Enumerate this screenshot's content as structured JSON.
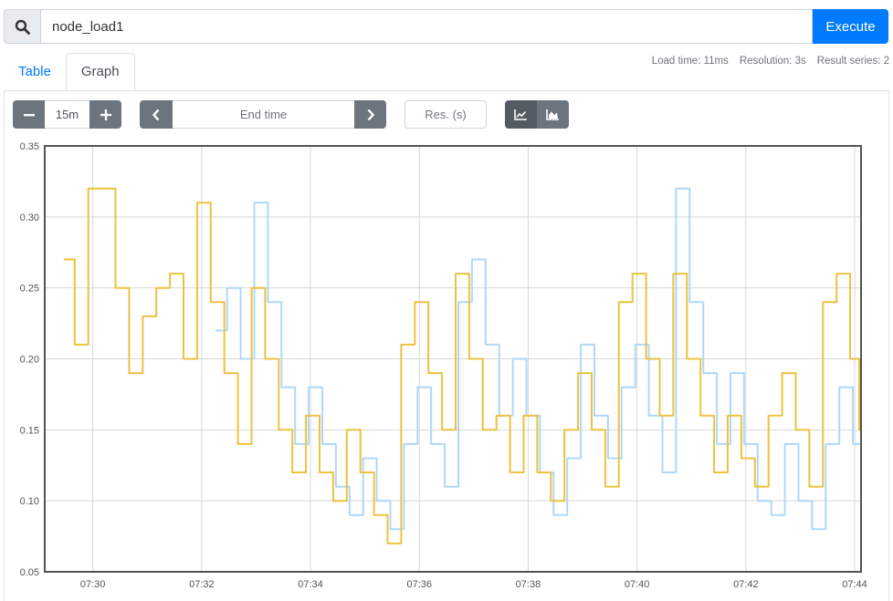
{
  "query": {
    "expression": "node_load1",
    "execute_label": "Execute",
    "search_icon": "search-icon"
  },
  "tabs": [
    {
      "label": "Table",
      "active": false
    },
    {
      "label": "Graph",
      "active": true
    }
  ],
  "stats": {
    "load_time": "Load time: 11ms",
    "resolution": "Resolution: 3s",
    "result_series": "Result series: 2"
  },
  "controls": {
    "range_value": "15m",
    "end_time_placeholder": "End time",
    "resolution_placeholder": "Res. (s)",
    "minus_icon": "minus-icon",
    "plus_icon": "plus-icon",
    "prev_icon": "chevron-left-icon",
    "next_icon": "chevron-right-icon",
    "lines_icon": "line-chart-icon",
    "stacked_icon": "area-chart-icon"
  },
  "colors": {
    "accent": "#007bff",
    "series_1": "#edc240",
    "series_2": "#afd8f8"
  },
  "chart_data": {
    "type": "line",
    "title": "",
    "xlabel": "",
    "ylabel": "",
    "ylim": [
      0.05,
      0.35
    ],
    "xlim": [
      "07:29:07",
      "07:44:07"
    ],
    "y_ticks": [
      "0.35",
      "0.30",
      "0.25",
      "0.20",
      "0.15",
      "0.10",
      "0.05"
    ],
    "x_ticks": [
      "07:30",
      "07:32",
      "07:34",
      "07:36",
      "07:38",
      "07:40",
      "07:42",
      "07:44"
    ],
    "grid": true,
    "step": true,
    "series": [
      {
        "points": [
          [
            "07:29:28",
            0.27
          ],
          [
            "07:29:40",
            0.21
          ],
          [
            "07:29:55",
            0.32
          ],
          [
            "07:30:25",
            0.25
          ],
          [
            "07:30:40",
            0.19
          ],
          [
            "07:30:55",
            0.23
          ],
          [
            "07:31:10",
            0.25
          ],
          [
            "07:31:25",
            0.26
          ],
          [
            "07:31:40",
            0.2
          ],
          [
            "07:31:55",
            0.31
          ],
          [
            "07:32:10",
            0.24
          ],
          [
            "07:32:25",
            0.19
          ],
          [
            "07:32:40",
            0.14
          ],
          [
            "07:32:55",
            0.25
          ],
          [
            "07:33:10",
            0.2
          ],
          [
            "07:33:25",
            0.15
          ],
          [
            "07:33:40",
            0.12
          ],
          [
            "07:33:55",
            0.16
          ],
          [
            "07:34:10",
            0.12
          ],
          [
            "07:34:25",
            0.1
          ],
          [
            "07:34:40",
            0.15
          ],
          [
            "07:34:55",
            0.12
          ],
          [
            "07:35:10",
            0.09
          ],
          [
            "07:35:25",
            0.07
          ],
          [
            "07:35:40",
            0.21
          ],
          [
            "07:35:55",
            0.24
          ],
          [
            "07:36:10",
            0.19
          ],
          [
            "07:36:25",
            0.15
          ],
          [
            "07:36:40",
            0.26
          ],
          [
            "07:36:55",
            0.2
          ],
          [
            "07:37:10",
            0.15
          ],
          [
            "07:37:25",
            0.16
          ],
          [
            "07:37:40",
            0.12
          ],
          [
            "07:37:55",
            0.16
          ],
          [
            "07:38:10",
            0.12
          ],
          [
            "07:38:25",
            0.1
          ],
          [
            "07:38:40",
            0.15
          ],
          [
            "07:38:55",
            0.19
          ],
          [
            "07:39:10",
            0.15
          ],
          [
            "07:39:25",
            0.11
          ],
          [
            "07:39:40",
            0.24
          ],
          [
            "07:39:55",
            0.26
          ],
          [
            "07:40:10",
            0.2
          ],
          [
            "07:40:25",
            0.16
          ],
          [
            "07:40:40",
            0.26
          ],
          [
            "07:40:55",
            0.2
          ],
          [
            "07:41:10",
            0.16
          ],
          [
            "07:41:25",
            0.12
          ],
          [
            "07:41:40",
            0.16
          ],
          [
            "07:41:55",
            0.13
          ],
          [
            "07:42:10",
            0.11
          ],
          [
            "07:42:25",
            0.16
          ],
          [
            "07:42:40",
            0.19
          ],
          [
            "07:42:55",
            0.15
          ],
          [
            "07:43:10",
            0.11
          ],
          [
            "07:43:25",
            0.24
          ],
          [
            "07:43:40",
            0.26
          ],
          [
            "07:43:55",
            0.2
          ],
          [
            "07:44:05",
            0.15
          ]
        ]
      },
      {
        "points": [
          [
            "07:32:15",
            0.22
          ],
          [
            "07:32:28",
            0.25
          ],
          [
            "07:32:43",
            0.2
          ],
          [
            "07:32:58",
            0.31
          ],
          [
            "07:33:13",
            0.24
          ],
          [
            "07:33:28",
            0.18
          ],
          [
            "07:33:43",
            0.14
          ],
          [
            "07:33:58",
            0.18
          ],
          [
            "07:34:13",
            0.14
          ],
          [
            "07:34:28",
            0.11
          ],
          [
            "07:34:43",
            0.09
          ],
          [
            "07:34:58",
            0.13
          ],
          [
            "07:35:13",
            0.1
          ],
          [
            "07:35:28",
            0.08
          ],
          [
            "07:35:43",
            0.14
          ],
          [
            "07:35:58",
            0.18
          ],
          [
            "07:36:13",
            0.14
          ],
          [
            "07:36:28",
            0.11
          ],
          [
            "07:36:43",
            0.24
          ],
          [
            "07:36:58",
            0.27
          ],
          [
            "07:37:13",
            0.21
          ],
          [
            "07:37:28",
            0.16
          ],
          [
            "07:37:43",
            0.2
          ],
          [
            "07:37:58",
            0.16
          ],
          [
            "07:38:13",
            0.12
          ],
          [
            "07:38:28",
            0.09
          ],
          [
            "07:38:43",
            0.13
          ],
          [
            "07:38:58",
            0.21
          ],
          [
            "07:39:13",
            0.16
          ],
          [
            "07:39:28",
            0.13
          ],
          [
            "07:39:43",
            0.18
          ],
          [
            "07:39:58",
            0.21
          ],
          [
            "07:40:13",
            0.16
          ],
          [
            "07:40:28",
            0.12
          ],
          [
            "07:40:43",
            0.32
          ],
          [
            "07:40:58",
            0.24
          ],
          [
            "07:41:13",
            0.19
          ],
          [
            "07:41:28",
            0.14
          ],
          [
            "07:41:43",
            0.19
          ],
          [
            "07:41:58",
            0.14
          ],
          [
            "07:42:13",
            0.1
          ],
          [
            "07:42:28",
            0.09
          ],
          [
            "07:42:43",
            0.14
          ],
          [
            "07:42:58",
            0.1
          ],
          [
            "07:43:13",
            0.08
          ],
          [
            "07:43:28",
            0.14
          ],
          [
            "07:43:43",
            0.18
          ],
          [
            "07:43:58",
            0.14
          ],
          [
            "07:44:07",
            0.11
          ]
        ]
      }
    ]
  }
}
